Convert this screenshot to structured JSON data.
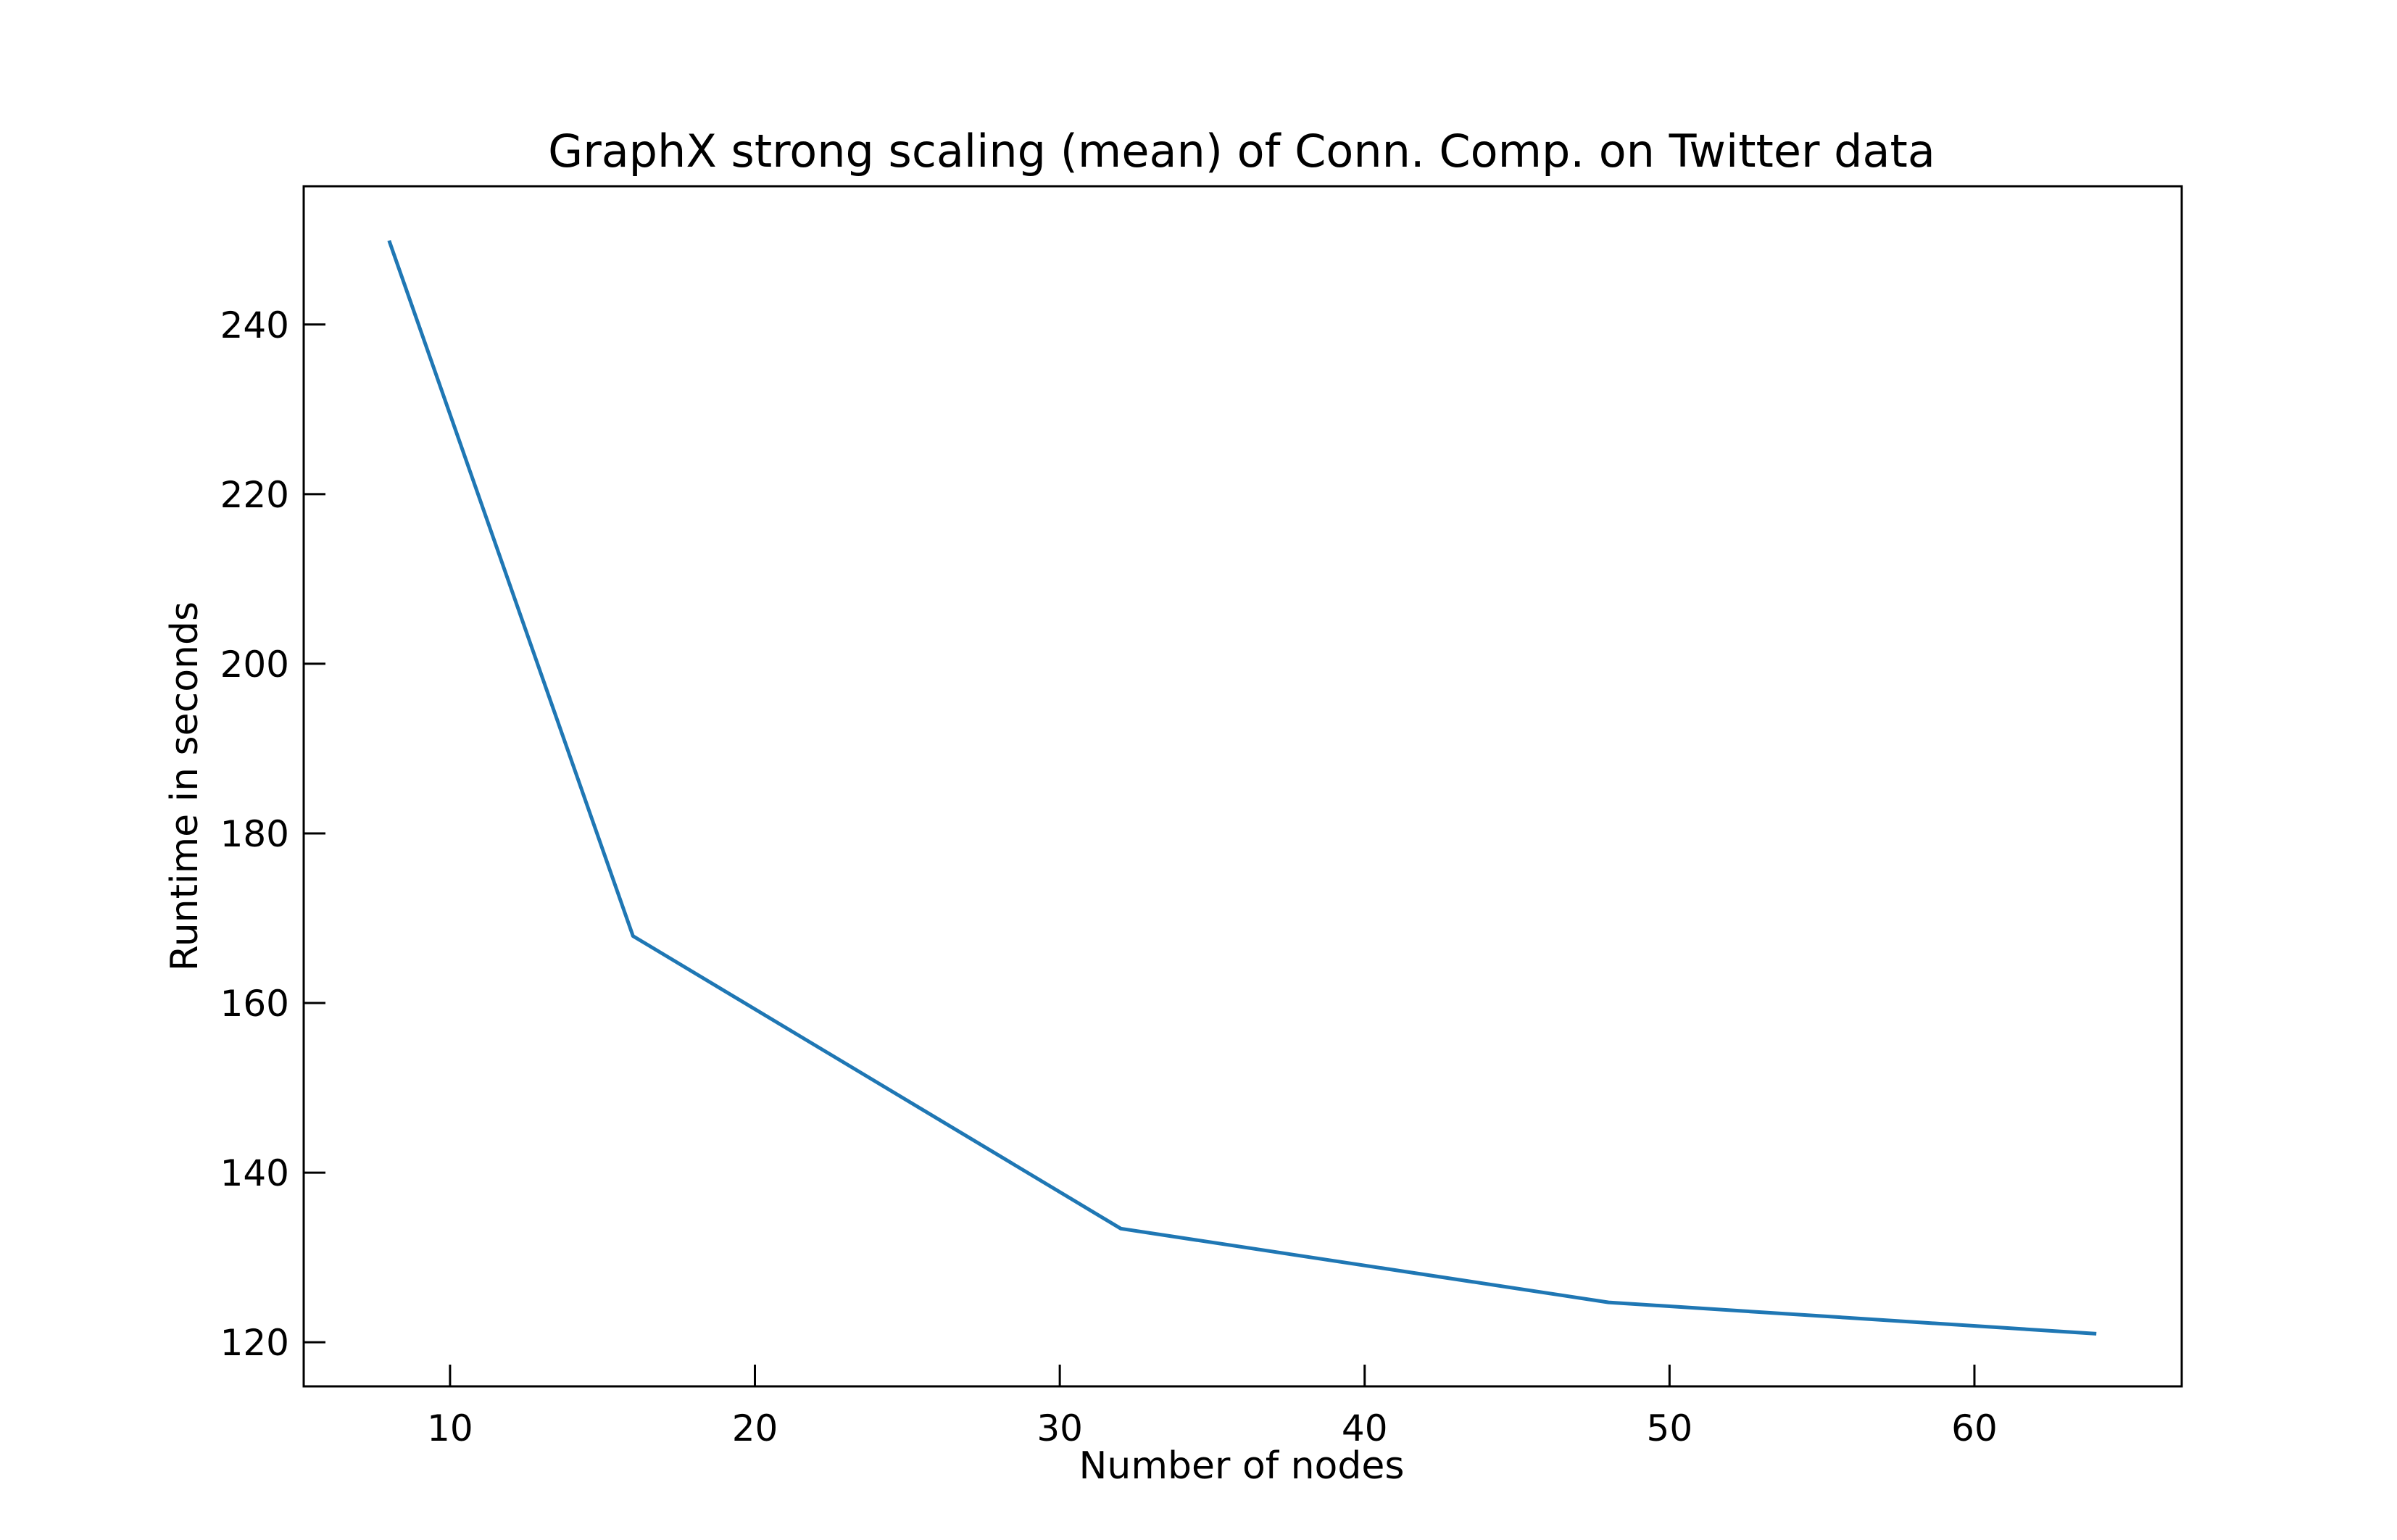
{
  "chart_data": {
    "type": "line",
    "title": "GraphX strong scaling (mean) of Conn. Comp. on Twitter data",
    "xlabel": "Number of nodes",
    "ylabel": "Runtime in seconds",
    "xlim": [
      5.2,
      66.8
    ],
    "ylim": [
      114.8,
      256.3
    ],
    "xticks": [
      10,
      20,
      30,
      40,
      50,
      60
    ],
    "yticks": [
      120,
      140,
      160,
      180,
      200,
      220,
      240
    ],
    "grid": false,
    "series": [
      {
        "color": "#1f77b4",
        "x": [
          8,
          16,
          32,
          48,
          64
        ],
        "y": [
          249.9,
          167.9,
          133.4,
          124.7,
          121.0
        ]
      }
    ]
  }
}
